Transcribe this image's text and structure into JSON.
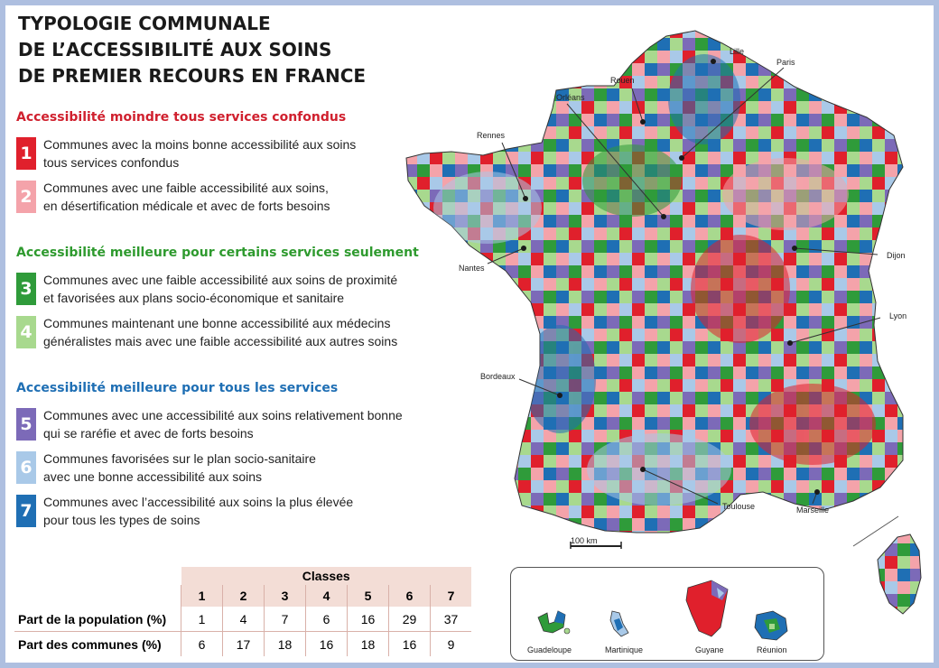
{
  "title": {
    "line1": "TYPOLOGIE COMMUNALE",
    "line2": "DE L’ACCESSIBILITÉ AUX SOINS",
    "line3": "DE PREMIER RECOURS EN FRANCE"
  },
  "legend": {
    "sections": [
      {
        "heading": "Accessibilité moindre tous services confondus",
        "color": "#d0202e"
      },
      {
        "heading": "Accessibilité meilleure pour certains services seulement",
        "color": "#2e9a2e"
      },
      {
        "heading": "Accessibilité meilleure pour tous les services",
        "color": "#1f6fb4"
      }
    ],
    "classes": [
      {
        "num": "1",
        "color": "#e0202c",
        "line1": "Communes avec la moins bonne accessibilité aux soins",
        "line2": "tous services confondus"
      },
      {
        "num": "2",
        "color": "#f4a3aa",
        "line1": "Communes avec une faible accessibilité aux soins,",
        "line2": "en désertification médicale et avec de forts besoins"
      },
      {
        "num": "3",
        "color": "#2f9b3a",
        "line1": "Communes avec une faible accessibilité aux soins de proximité",
        "line2": "et favorisées aux plans socio-économique et sanitaire"
      },
      {
        "num": "4",
        "color": "#a8d98e",
        "line1": "Communes maintenant une bonne accessibilité aux médecins",
        "line2": "généralistes mais avec une faible accessibilité aux autres soins"
      },
      {
        "num": "5",
        "color": "#7c6ab8",
        "line1": "Communes avec une accessibilité aux soins relativement bonne",
        "line2": "qui se raréfie et avec de forts besoins"
      },
      {
        "num": "6",
        "color": "#a9c9e8",
        "line1": "Communes favorisées sur le plan socio-sanitaire",
        "line2": "avec une bonne accessibilité aux soins"
      },
      {
        "num": "7",
        "color": "#1f6fb4",
        "line1": "Communes avec l’accessibilité aux soins la plus élevée",
        "line2": "pour tous les types de soins"
      }
    ]
  },
  "map": {
    "cities": [
      "Lille",
      "Paris",
      "Rouen",
      "Orléans",
      "Rennes",
      "Nantes",
      "Dijon",
      "Lyon",
      "Bordeaux",
      "Toulouse",
      "Marseille"
    ],
    "scale": "100 km",
    "insets": [
      "Guadeloupe",
      "Martinique",
      "Guyane",
      "Réunion"
    ]
  },
  "table": {
    "header": "Classes",
    "columns": [
      "1",
      "2",
      "3",
      "4",
      "5",
      "6",
      "7"
    ],
    "rows": [
      {
        "label": "Part de la population (%)",
        "values": [
          "1",
          "4",
          "7",
          "6",
          "16",
          "29",
          "37"
        ]
      },
      {
        "label": "Part des communes (%)",
        "values": [
          "6",
          "17",
          "18",
          "16",
          "18",
          "16",
          "9"
        ]
      }
    ]
  }
}
